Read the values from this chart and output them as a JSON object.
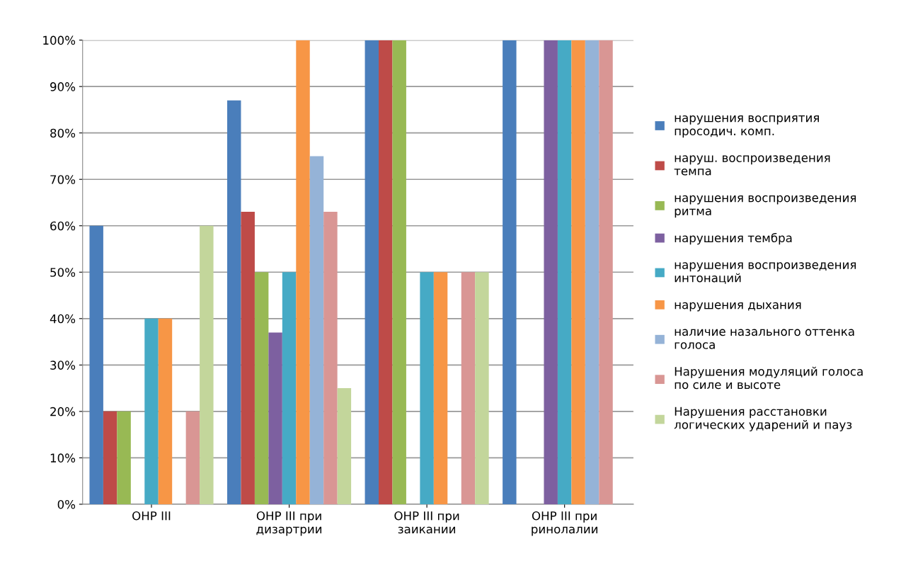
{
  "chart_data": {
    "type": "bar",
    "categories": [
      "ОНР III",
      "ОНР III при дизартрии",
      "ОНР III при заикании",
      "ОНР III при ринолалии"
    ],
    "series": [
      {
        "name": "нарушения восприятия просодич. комп.",
        "color": "#4a7ebb",
        "values": [
          60,
          87,
          100,
          100
        ]
      },
      {
        "name": "наруш. воспроизведения темпа",
        "color": "#be4b48",
        "values": [
          20,
          63,
          100,
          0
        ]
      },
      {
        "name": "нарушения воспроизведения ритма",
        "color": "#98b954",
        "values": [
          20,
          50,
          100,
          0
        ]
      },
      {
        "name": "нарушения тембра",
        "color": "#7d60a0",
        "values": [
          0,
          37,
          0,
          100
        ]
      },
      {
        "name": "нарушения воспроизведения интонаций",
        "color": "#46aac5",
        "values": [
          40,
          50,
          50,
          100
        ]
      },
      {
        "name": "нарушения дыхания",
        "color": "#f79646",
        "values": [
          40,
          100,
          50,
          100
        ]
      },
      {
        "name": "наличие назального оттенка голоса",
        "color": "#95b3d7",
        "values": [
          0,
          75,
          0,
          100
        ]
      },
      {
        "name": "Нарушения модуляций голоса по силе и высоте",
        "color": "#d99694",
        "values": [
          20,
          63,
          50,
          100
        ]
      },
      {
        "name": "Нарушения расстановки логических ударений и пауз",
        "color": "#c3d69b",
        "values": [
          60,
          25,
          50,
          0
        ]
      }
    ],
    "ylim": [
      0,
      100
    ],
    "yticks": [
      {
        "value": 0,
        "label": "0%"
      },
      {
        "value": 10,
        "label": "10%"
      },
      {
        "value": 20,
        "label": "20%"
      },
      {
        "value": 30,
        "label": "30%"
      },
      {
        "value": 40,
        "label": "40%"
      },
      {
        "value": 50,
        "label": "50%"
      },
      {
        "value": 60,
        "label": "60%"
      },
      {
        "value": 70,
        "label": "70%"
      },
      {
        "value": 80,
        "label": "80%"
      },
      {
        "value": 90,
        "label": "90%"
      },
      {
        "value": 100,
        "label": "100%"
      }
    ],
    "grid": "y",
    "legend": "right"
  }
}
